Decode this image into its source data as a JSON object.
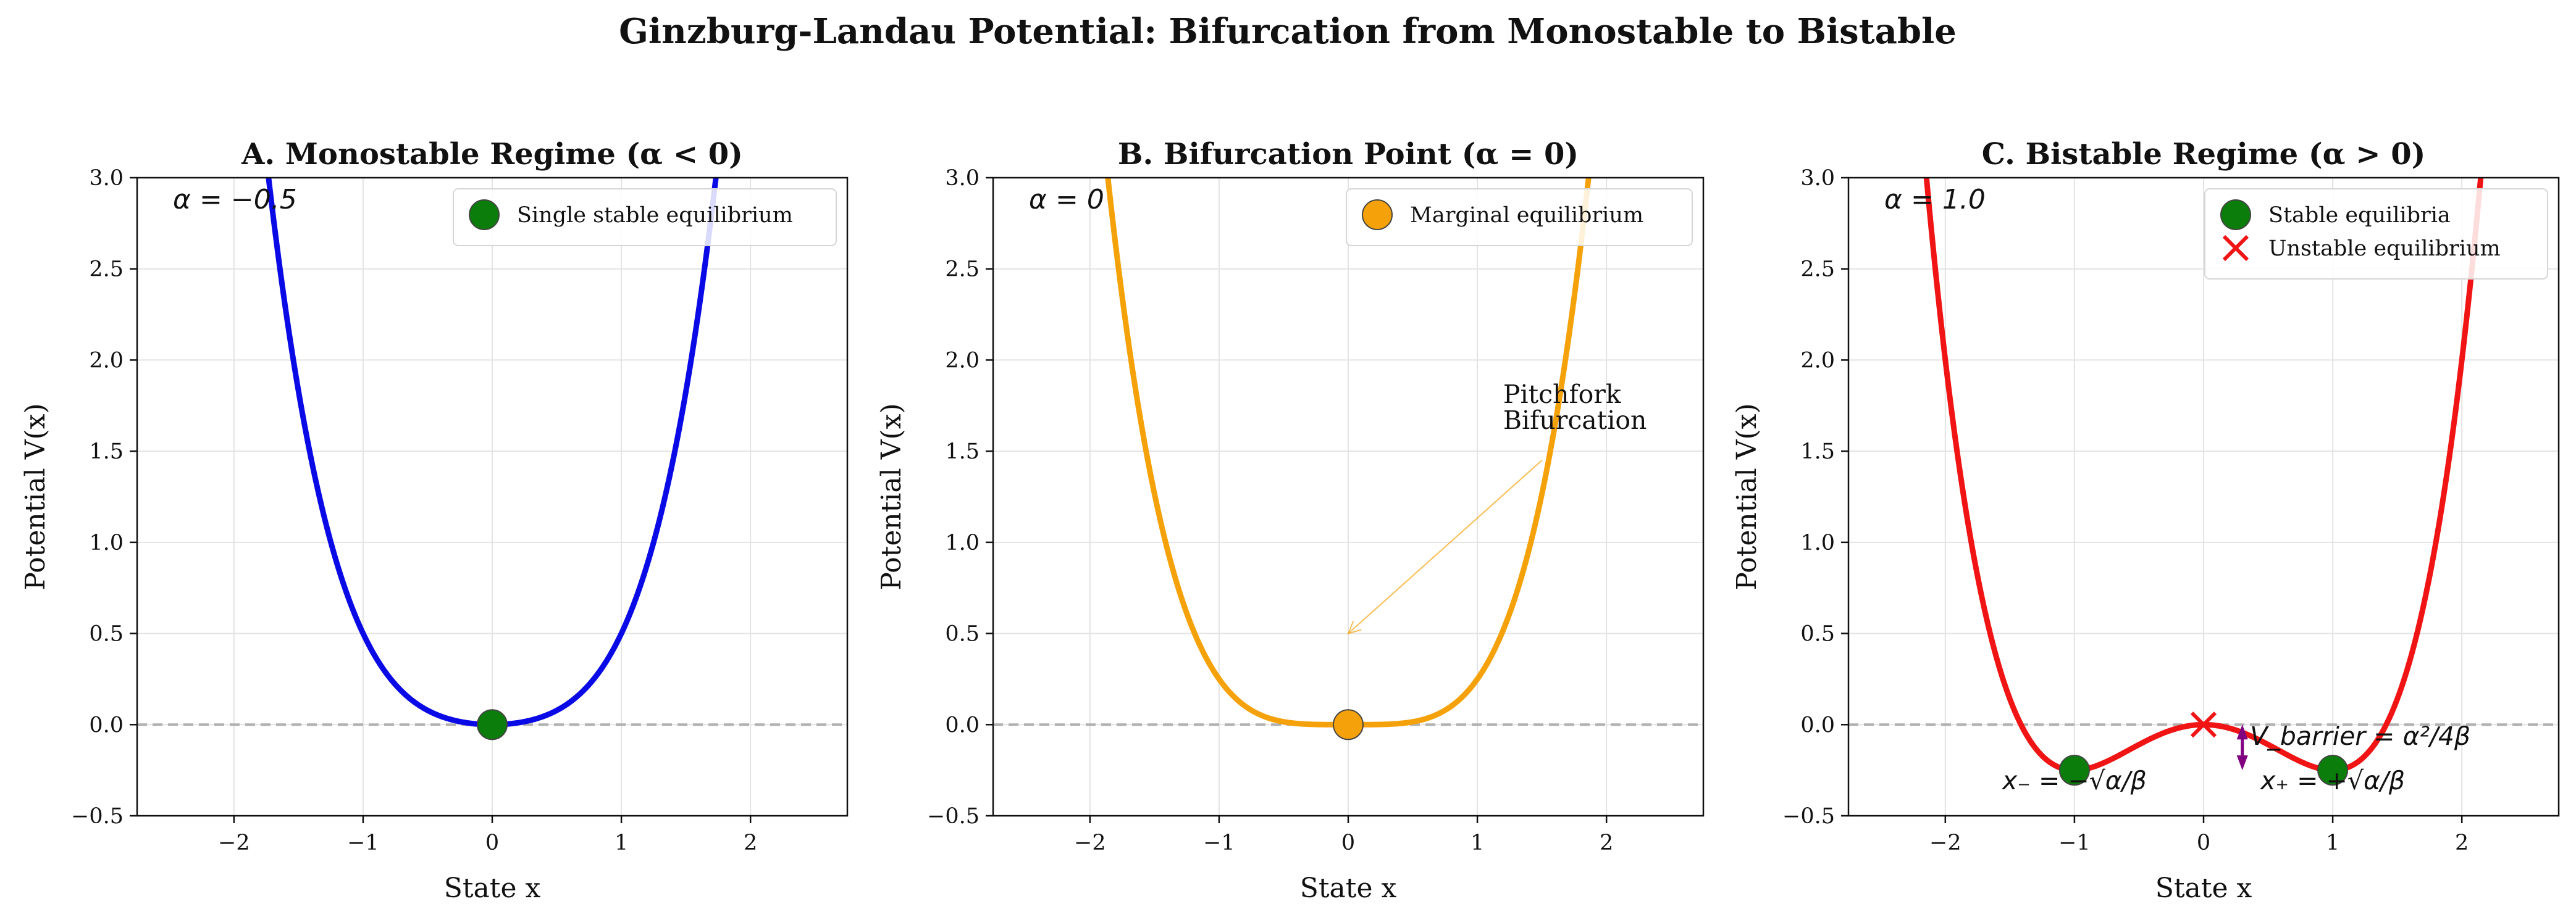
{
  "figure": {
    "suptitle": "Ginzburg-Landau Potential: Bifurcation from Monostable to Bistable"
  },
  "chart_data": [
    {
      "type": "line",
      "title": "A. Monostable Regime (α < 0)",
      "xlabel": "State x",
      "ylabel": "Potential V(x)",
      "xlim": [
        -2.75,
        2.75
      ],
      "ylim": [
        -0.5,
        3.0
      ],
      "xticks": [
        -2,
        -1,
        0,
        1,
        2
      ],
      "xtick_labels": [
        "−2",
        "−1",
        "0",
        "1",
        "2"
      ],
      "yticks": [
        -0.5,
        0.0,
        0.5,
        1.0,
        1.5,
        2.0,
        2.5,
        3.0
      ],
      "ytick_labels": [
        "−0.5",
        "0.0",
        "0.5",
        "1.0",
        "1.5",
        "2.0",
        "2.5",
        "3.0"
      ],
      "grid": true,
      "legend_position": "top-right",
      "reference_line": {
        "y": 0.0,
        "color": "#b0b0b0",
        "style": "dashed"
      },
      "series": [
        {
          "function": "V(x) = -α/2·x² + β/4·x⁴",
          "alpha": -0.5,
          "beta": 1.0,
          "x_range": [
            -2.75,
            2.75
          ],
          "color": "#0a0ae6"
        }
      ],
      "corner_label": {
        "text": "α = −0.5",
        "color": "#0a0ae6"
      },
      "points": [
        {
          "kind": "circle",
          "x": 0.0,
          "y": 0.0,
          "color": "#0a7d0a",
          "label": "Single stable equilibrium"
        }
      ],
      "annotations": []
    },
    {
      "type": "line",
      "title": "B. Bifurcation Point (α = 0)",
      "xlabel": "State x",
      "ylabel": "Potential V(x)",
      "xlim": [
        -2.75,
        2.75
      ],
      "ylim": [
        -0.5,
        3.0
      ],
      "xticks": [
        -2,
        -1,
        0,
        1,
        2
      ],
      "xtick_labels": [
        "−2",
        "−1",
        "0",
        "1",
        "2"
      ],
      "yticks": [
        -0.5,
        0.0,
        0.5,
        1.0,
        1.5,
        2.0,
        2.5,
        3.0
      ],
      "ytick_labels": [
        "−0.5",
        "0.0",
        "0.5",
        "1.0",
        "1.5",
        "2.0",
        "2.5",
        "3.0"
      ],
      "grid": true,
      "legend_position": "top-right",
      "reference_line": {
        "y": 0.0,
        "color": "#b0b0b0",
        "style": "dashed"
      },
      "series": [
        {
          "function": "V(x) = -α/2·x² + β/4·x⁴",
          "alpha": 0.0,
          "beta": 1.0,
          "x_range": [
            -2.75,
            2.75
          ],
          "color": "#f5a20a"
        }
      ],
      "corner_label": {
        "text": "α = 0",
        "color": "#f5a20a"
      },
      "points": [
        {
          "kind": "circle",
          "x": 0.0,
          "y": 0.0,
          "color": "#f5a20a",
          "label": "Marginal equilibrium"
        }
      ],
      "annotations": [
        {
          "kind": "arrow",
          "lines": [
            "Pitchfork",
            "Bifurcation"
          ],
          "text_x": 1.2,
          "text_y": 1.65,
          "tail_x": 1.5,
          "tail_y": 1.45,
          "head_x": 0.0,
          "head_y": 0.5,
          "color": "#f5a20a"
        }
      ]
    },
    {
      "type": "line",
      "title": "C. Bistable Regime (α > 0)",
      "xlabel": "State x",
      "ylabel": "Potential V(x)",
      "xlim": [
        -2.75,
        2.75
      ],
      "ylim": [
        -0.5,
        3.0
      ],
      "xticks": [
        -2,
        -1,
        0,
        1,
        2
      ],
      "xtick_labels": [
        "−2",
        "−1",
        "0",
        "1",
        "2"
      ],
      "yticks": [
        -0.5,
        0.0,
        0.5,
        1.0,
        1.5,
        2.0,
        2.5,
        3.0
      ],
      "ytick_labels": [
        "−0.5",
        "0.0",
        "0.5",
        "1.0",
        "1.5",
        "2.0",
        "2.5",
        "3.0"
      ],
      "grid": true,
      "legend_position": "top-right",
      "reference_line": {
        "y": 0.0,
        "color": "#b0b0b0",
        "style": "dashed"
      },
      "series": [
        {
          "function": "V(x) = -α/2·x² + β/4·x⁴",
          "alpha": 1.0,
          "beta": 1.0,
          "x_range": [
            -2.75,
            2.75
          ],
          "color": "#f01414"
        }
      ],
      "corner_label": {
        "text": "α = 1.0",
        "color": "#f01414"
      },
      "points": [
        {
          "kind": "circle",
          "x": -1.0,
          "y": -0.25,
          "color": "#0a7d0a",
          "label": "Stable equilibria"
        },
        {
          "kind": "circle",
          "x": 1.0,
          "y": -0.25,
          "color": "#0a7d0a",
          "label": ""
        },
        {
          "kind": "cross",
          "x": 0.0,
          "y": 0.0,
          "color": "#f01414",
          "label": "Unstable equilibrium"
        }
      ],
      "annotations": [
        {
          "kind": "text",
          "text": "x₋ = −√α/β",
          "x": -1.0,
          "y": -0.355,
          "color": "#111111"
        },
        {
          "kind": "text",
          "text": "x₊ = +√α/β",
          "x": 1.0,
          "y": -0.355,
          "color": "#111111"
        },
        {
          "kind": "double_arrow",
          "x": 0.3,
          "y_from": 0.0,
          "y_to": -0.25,
          "color": "#800080"
        },
        {
          "kind": "text_left",
          "text": "V_barrier = α²/4β",
          "x": 0.36,
          "y": -0.11,
          "color": "#800080"
        }
      ]
    }
  ]
}
